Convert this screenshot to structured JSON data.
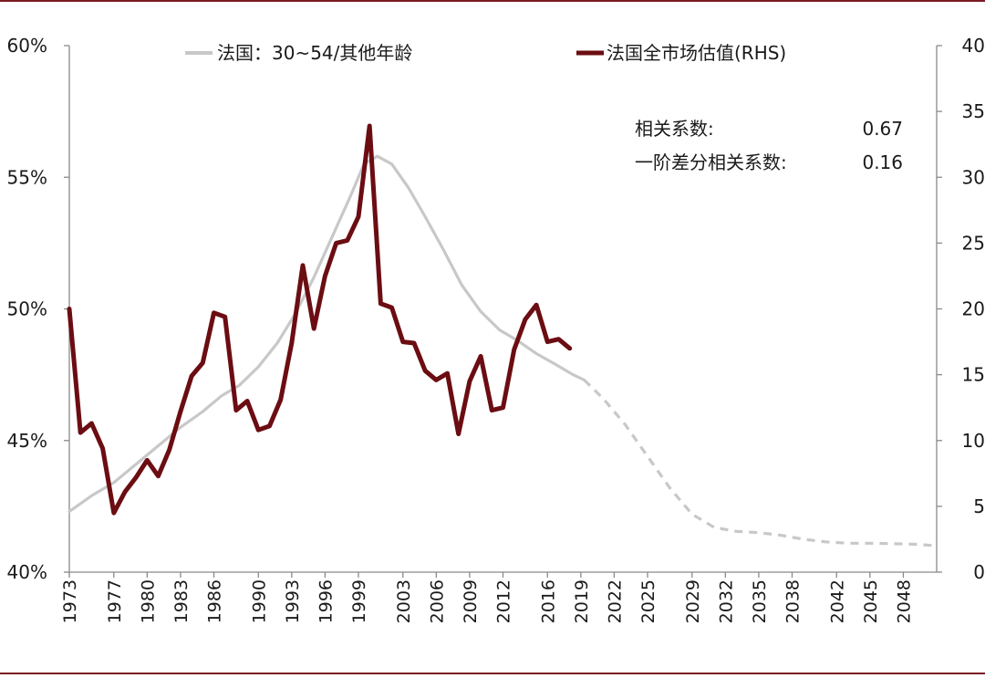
{
  "chart_data": {
    "type": "line",
    "legend": [
      {
        "label": "法国：30~54/其他年龄",
        "color": "#c8c8c8"
      },
      {
        "label": "法国全市场估值(RHS)",
        "color": "#6b0d12"
      }
    ],
    "annotation": {
      "rows": [
        {
          "label": "相关系数:",
          "value": "0.67"
        },
        {
          "label": "一阶差分相关系数:",
          "value": "0.16"
        }
      ]
    },
    "y_left": {
      "ticks": [
        "40%",
        "45%",
        "50%",
        "55%",
        "60%"
      ],
      "range": [
        40,
        60
      ]
    },
    "y_right": {
      "ticks": [
        "0",
        "5",
        "10",
        "15",
        "20",
        "25",
        "30",
        "35",
        "40"
      ],
      "range": [
        0,
        40
      ]
    },
    "x_axis": {
      "range": [
        1973,
        2051
      ],
      "ticks": [
        {
          "year": 1973,
          "label": "1973"
        },
        {
          "year": 1977,
          "label": "1977"
        },
        {
          "year": 1980,
          "label": "1980"
        },
        {
          "year": 1983,
          "label": "1983"
        },
        {
          "year": 1986,
          "label": "1986"
        },
        {
          "year": 1990,
          "label": "1990"
        },
        {
          "year": 1993,
          "label": "1993"
        },
        {
          "year": 1996,
          "label": "1996"
        },
        {
          "year": 1999,
          "label": "1999"
        },
        {
          "year": 2003,
          "label": "2003"
        },
        {
          "year": 2006,
          "label": "2006"
        },
        {
          "year": 2009,
          "label": "2009"
        },
        {
          "year": 2012,
          "label": "2012"
        },
        {
          "year": 2016,
          "label": "2016"
        },
        {
          "year": 2019,
          "label": "2019"
        },
        {
          "year": 2022,
          "label": "2022"
        },
        {
          "year": 2025,
          "label": "2025"
        },
        {
          "year": 2029,
          "label": "2029"
        },
        {
          "year": 2032,
          "label": "2032"
        },
        {
          "year": 2035,
          "label": "2035"
        },
        {
          "year": 2038,
          "label": "2038"
        },
        {
          "year": 2042,
          "label": "2042"
        },
        {
          "year": 2045,
          "label": "2045"
        },
        {
          "year": 2048,
          "label": "2048"
        }
      ]
    },
    "series": [
      {
        "name": "法国：30~54/其他年龄",
        "axis": "left",
        "color": "#c8c8c8",
        "points": [
          [
            1973.0,
            42.3
          ],
          [
            1975.0,
            42.9
          ],
          [
            1977.0,
            43.4
          ],
          [
            1979.0,
            44.1
          ],
          [
            1981.0,
            44.8
          ],
          [
            1983.0,
            45.5
          ],
          [
            1985.0,
            46.1
          ],
          [
            1986.7,
            46.7
          ],
          [
            1988.3,
            47.1
          ],
          [
            1990.0,
            47.8
          ],
          [
            1991.7,
            48.7
          ],
          [
            1993.3,
            49.8
          ],
          [
            1995.0,
            51.2
          ],
          [
            1996.7,
            52.8
          ],
          [
            1998.3,
            54.3
          ],
          [
            1999.5,
            55.5
          ],
          [
            2000.7,
            55.8
          ],
          [
            2002.0,
            55.5
          ],
          [
            2003.5,
            54.6
          ],
          [
            2005.0,
            53.5
          ],
          [
            2006.7,
            52.2
          ],
          [
            2008.3,
            50.9
          ],
          [
            2010.0,
            49.9
          ],
          [
            2011.7,
            49.2
          ],
          [
            2013.3,
            48.8
          ],
          [
            2015.0,
            48.3
          ],
          [
            2016.7,
            47.9
          ],
          [
            2018.3,
            47.5
          ],
          [
            2019.3,
            47.3
          ]
        ]
      },
      {
        "name": "法国：30~54/其他年龄 (forecast)",
        "axis": "left",
        "color": "#c8c8c8",
        "dashed": true,
        "points": [
          [
            2019.3,
            47.3
          ],
          [
            2021.0,
            46.6
          ],
          [
            2023.0,
            45.6
          ],
          [
            2025.0,
            44.4
          ],
          [
            2027.0,
            43.2
          ],
          [
            2029.0,
            42.2
          ],
          [
            2031.0,
            41.7
          ],
          [
            2033.0,
            41.55
          ],
          [
            2035.0,
            41.5
          ],
          [
            2037.0,
            41.4
          ],
          [
            2039.0,
            41.25
          ],
          [
            2041.0,
            41.15
          ],
          [
            2043.0,
            41.1
          ],
          [
            2045.0,
            41.1
          ],
          [
            2047.0,
            41.08
          ],
          [
            2049.0,
            41.06
          ],
          [
            2051.0,
            41.0
          ]
        ]
      },
      {
        "name": "法国全市场估值(RHS)",
        "axis": "right",
        "color": "#6b0d12",
        "points": [
          [
            1973.0,
            20.0
          ],
          [
            1974.0,
            10.6
          ],
          [
            1975.0,
            11.3
          ],
          [
            1976.0,
            9.4
          ],
          [
            1977.0,
            4.5
          ],
          [
            1978.0,
            6.1
          ],
          [
            1979.0,
            7.2
          ],
          [
            1980.0,
            8.5
          ],
          [
            1981.0,
            7.3
          ],
          [
            1982.0,
            9.3
          ],
          [
            1983.0,
            12.2
          ],
          [
            1984.0,
            14.9
          ],
          [
            1985.0,
            15.9
          ],
          [
            1986.0,
            19.7
          ],
          [
            1987.0,
            19.4
          ],
          [
            1988.0,
            12.3
          ],
          [
            1989.0,
            13.0
          ],
          [
            1990.0,
            10.8
          ],
          [
            1991.0,
            11.1
          ],
          [
            1992.0,
            13.1
          ],
          [
            1993.0,
            17.4
          ],
          [
            1994.0,
            23.3
          ],
          [
            1995.0,
            18.5
          ],
          [
            1996.0,
            22.5
          ],
          [
            1997.0,
            25.0
          ],
          [
            1998.0,
            25.2
          ],
          [
            1999.0,
            27.0
          ],
          [
            2000.0,
            33.9
          ],
          [
            2001.0,
            20.4
          ],
          [
            2002.0,
            20.1
          ],
          [
            2003.0,
            17.5
          ],
          [
            2004.0,
            17.4
          ],
          [
            2005.0,
            15.3
          ],
          [
            2006.0,
            14.6
          ],
          [
            2007.0,
            15.1
          ],
          [
            2008.0,
            10.5
          ],
          [
            2009.0,
            14.5
          ],
          [
            2010.0,
            16.4
          ],
          [
            2011.0,
            12.3
          ],
          [
            2012.0,
            12.5
          ],
          [
            2013.0,
            16.9
          ],
          [
            2014.0,
            19.2
          ],
          [
            2015.0,
            20.3
          ],
          [
            2016.0,
            17.5
          ],
          [
            2017.0,
            17.7
          ],
          [
            2018.0,
            17.0
          ]
        ]
      }
    ]
  }
}
